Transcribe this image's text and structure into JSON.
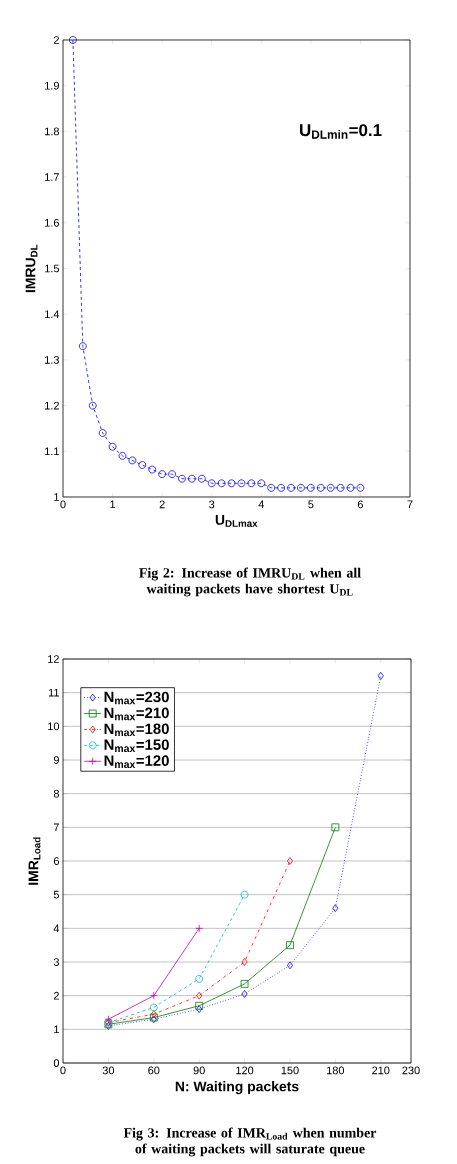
{
  "chart_data": [
    {
      "type": "line",
      "xlabel": "U$_{DLmax}$",
      "ylabel": "IMRU$_{DL}$",
      "annotations": [
        "U$_{DLmin}$=0.1",
        "Fig 2: Increase of IMRU$_{DL}$ when all waiting packets have shortest U$_{DL}$"
      ],
      "x": [
        0.2,
        0.4,
        0.6,
        0.8,
        1.0,
        1.2,
        1.4,
        1.6,
        1.8,
        2.0,
        2.2,
        2.4,
        2.6,
        2.8,
        3.0,
        3.2,
        3.4,
        3.6,
        3.8,
        4.0,
        4.2,
        4.4,
        4.6,
        4.8,
        5.0,
        5.2,
        5.4,
        5.6,
        5.8,
        6.0
      ],
      "series": [
        {
          "color": "#0000ff",
          "values": [
            2.0,
            1.33,
            1.2,
            1.14,
            1.11,
            1.09,
            1.08,
            1.07,
            1.06,
            1.05,
            1.05,
            1.04,
            1.04,
            1.04,
            1.03,
            1.03,
            1.03,
            1.03,
            1.03,
            1.03,
            1.02,
            1.02,
            1.02,
            1.02,
            1.02,
            1.02,
            1.02,
            1.02,
            1.02,
            1.02
          ]
        }
      ],
      "marker": "circle",
      "line_style": "dashed",
      "xlim": [
        0,
        7
      ],
      "ylim": [
        1,
        2
      ],
      "xticks": [
        0,
        1,
        2,
        3,
        4,
        5,
        6,
        7
      ],
      "yticks": [
        1,
        1.1,
        1.2,
        1.3,
        1.4,
        1.5,
        1.6,
        1.7,
        1.8,
        1.9,
        2
      ],
      "grid": false,
      "legend": false
    },
    {
      "type": "line",
      "xlabel": "N: Waiting packets",
      "ylabel": "IMR$_{Load}$",
      "annotations": [
        "Fig 3: Increase of IMR$_{Load}$ when number of waiting packets will saturate queue"
      ],
      "series": [
        {
          "name": "N$_{max}$=230",
          "color": "#0000ff",
          "marker": "diamond",
          "line_style": "dotted",
          "x": [
            30,
            60,
            90,
            120,
            150,
            180,
            210
          ],
          "values": [
            1.1,
            1.3,
            1.6,
            2.05,
            2.9,
            4.6,
            11.5
          ]
        },
        {
          "name": "N$_{max}$=210",
          "color": "#008000",
          "marker": "square",
          "line_style": "solid",
          "x": [
            30,
            60,
            90,
            120,
            150,
            180
          ],
          "values": [
            1.15,
            1.35,
            1.7,
            2.35,
            3.5,
            7.0
          ]
        },
        {
          "name": "N$_{max}$=180",
          "color": "#ff0000",
          "marker": "diamond",
          "line_style": "dashdot",
          "x": [
            30,
            60,
            90,
            120,
            150
          ],
          "values": [
            1.2,
            1.45,
            2.0,
            3.0,
            6.0
          ]
        },
        {
          "name": "N$_{max}$=150",
          "color": "#00bfbf",
          "marker": "circle",
          "line_style": "dashed",
          "x": [
            30,
            60,
            90,
            120
          ],
          "values": [
            1.2,
            1.65,
            2.5,
            5.0
          ]
        },
        {
          "name": "N$_{max}$=120",
          "color": "#bf00bf",
          "marker": "cross",
          "line_style": "solid",
          "x": [
            30,
            60,
            90
          ],
          "values": [
            1.3,
            2.0,
            4.0
          ]
        }
      ],
      "xlim": [
        0,
        230
      ],
      "ylim": [
        0,
        12
      ],
      "xticks": [
        0,
        30,
        60,
        90,
        120,
        150,
        180,
        210,
        230
      ],
      "yticks": [
        0,
        1,
        2,
        3,
        4,
        5,
        6,
        7,
        8,
        9,
        10,
        11,
        12
      ],
      "grid": "y",
      "legend": "top left"
    }
  ]
}
